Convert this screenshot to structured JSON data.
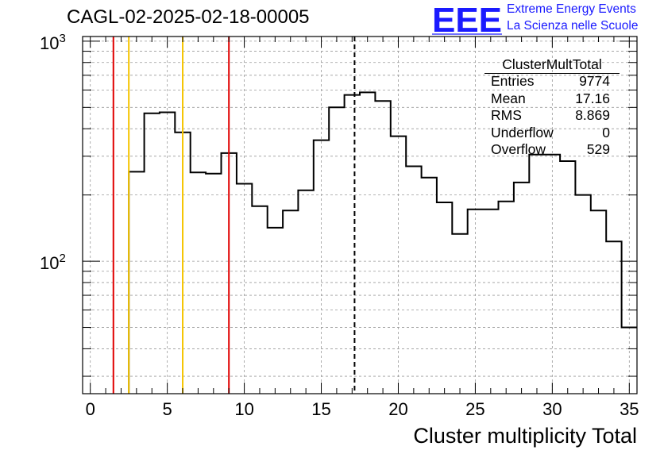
{
  "run_title": "CAGL-02-2025-02-18-00005",
  "logo": {
    "mark": "EEE",
    "line1": "Extreme Energy Events",
    "line2": "La Scienza nelle Scuole",
    "color": "#1a1aff"
  },
  "stats_box": {
    "title": "ClusterMultTotal",
    "rows": [
      {
        "key": "Entries",
        "value": "9774"
      },
      {
        "key": "Mean",
        "value": "17.16"
      },
      {
        "key": "RMS",
        "value": "8.869"
      },
      {
        "key": "Underflow",
        "value": "0"
      },
      {
        "key": "Overflow",
        "value": "529"
      }
    ]
  },
  "chart_data": {
    "type": "histogram",
    "xlabel": "Cluster multiplicity Total",
    "ylabel": "",
    "xlim": [
      -0.5,
      35.5
    ],
    "ylim": [
      25,
      1050
    ],
    "yscale": "log",
    "grid": true,
    "x_ticks": [
      0,
      5,
      10,
      15,
      20,
      25,
      30,
      35
    ],
    "y_tick_labels": [
      {
        "value": 100,
        "label": "10",
        "exp": "2"
      },
      {
        "value": 1000,
        "label": "10",
        "exp": "3"
      }
    ],
    "bin_edges": [
      -0.5,
      0.5,
      1.5,
      2.5,
      3.5,
      4.5,
      5.5,
      6.5,
      7.5,
      8.5,
      9.5,
      10.5,
      11.5,
      12.5,
      13.5,
      14.5,
      15.5,
      16.5,
      17.5,
      18.5,
      19.5,
      20.5,
      21.5,
      22.5,
      23.5,
      24.5,
      25.5,
      26.5,
      27.5,
      28.5,
      29.5,
      30.5,
      31.5,
      32.5,
      33.5,
      34.5,
      35.5
    ],
    "counts": [
      0,
      0,
      0,
      255,
      470,
      475,
      385,
      253,
      250,
      310,
      225,
      178,
      142,
      170,
      210,
      355,
      500,
      570,
      585,
      535,
      370,
      270,
      240,
      185,
      133,
      172,
      172,
      187,
      228,
      305,
      305,
      285,
      200,
      170,
      123,
      50
    ],
    "line_color": "#000000",
    "vertical_lines": [
      {
        "x": 1.5,
        "color": "#e00000",
        "style": "solid"
      },
      {
        "x": 2.5,
        "color": "#f5c400",
        "style": "solid"
      },
      {
        "x": 6,
        "color": "#f5c400",
        "style": "solid"
      },
      {
        "x": 9,
        "color": "#e00000",
        "style": "solid"
      },
      {
        "x": 17.16,
        "color": "#000000",
        "style": "dashed"
      }
    ]
  }
}
